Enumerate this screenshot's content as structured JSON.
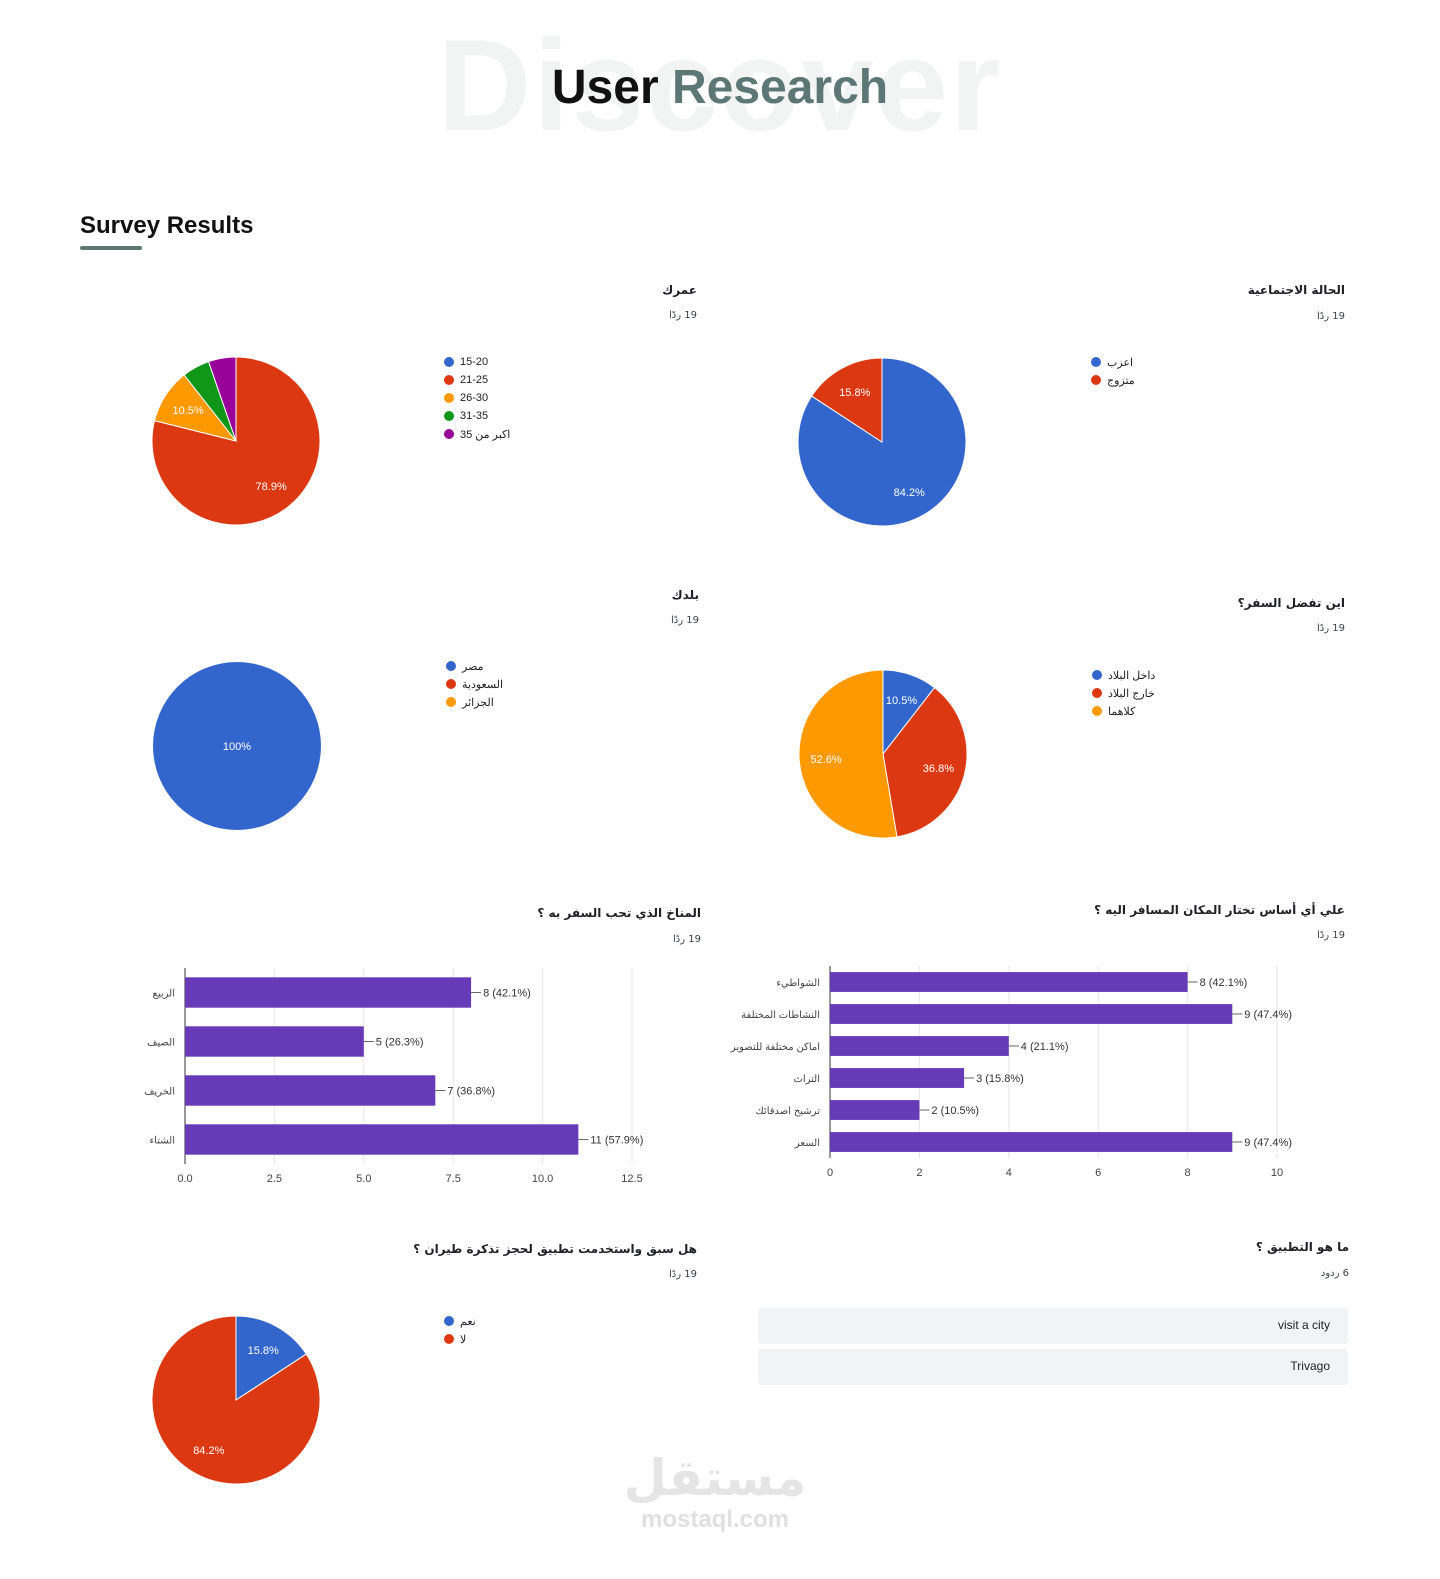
{
  "header": {
    "background_word": "Discover",
    "title_part1": "User",
    "title_part2": "Research"
  },
  "section": {
    "title": "Survey Results"
  },
  "colors": {
    "blue": "#3366cc",
    "red": "#dc3912",
    "orange": "#ff9900",
    "green": "#109618",
    "purple": "#990099",
    "bar": "#673ab7",
    "accent": "#5c7775"
  },
  "chart_data": [
    {
      "id": "age",
      "type": "pie",
      "title": "عمرك",
      "responses": "19 ردًا",
      "labels": [
        "15-20",
        "21-25",
        "26-30",
        "31-35",
        "اكبر من 35"
      ],
      "values": [
        0,
        78.9,
        10.5,
        5.3,
        5.3
      ],
      "colors": [
        "#3366cc",
        "#dc3912",
        "#ff9900",
        "#109618",
        "#990099"
      ],
      "shown_labels": {
        "1": "78.9%",
        "2": "10.5%"
      },
      "legend_position": "right"
    },
    {
      "id": "marital",
      "type": "pie",
      "title": "الحالة الاجتماعية",
      "responses": "19 ردًا",
      "labels": [
        "اعزب",
        "متزوج"
      ],
      "values": [
        84.2,
        15.8
      ],
      "colors": [
        "#3366cc",
        "#dc3912"
      ],
      "shown_labels": {
        "0": "84.2%",
        "1": "15.8%"
      },
      "legend_position": "right"
    },
    {
      "id": "country",
      "type": "pie",
      "title": "بلدك",
      "responses": "19 ردًا",
      "labels": [
        "مصر",
        "السعودية",
        "الجزائر"
      ],
      "values": [
        100,
        0,
        0
      ],
      "colors": [
        "#3366cc",
        "#dc3912",
        "#ff9900"
      ],
      "shown_labels": {
        "0": "100%"
      },
      "legend_position": "right"
    },
    {
      "id": "travel_where",
      "type": "pie",
      "title": "اين تفضل السفر؟",
      "responses": "19 ردًا",
      "labels": [
        "داخل البلاد",
        "خارج البلاد",
        "كلاهما"
      ],
      "values": [
        10.5,
        36.8,
        52.6
      ],
      "colors": [
        "#3366cc",
        "#dc3912",
        "#ff9900"
      ],
      "shown_labels": {
        "0": "10.5%",
        "1": "36.8%",
        "2": "52.6%"
      },
      "legend_position": "right"
    },
    {
      "id": "climate",
      "type": "bar",
      "orientation": "horizontal",
      "title": "المناخ الذي تحب السفر به ؟",
      "responses": "19 ردًا",
      "categories": [
        "الربيع",
        "الصيف",
        "الخريف",
        "الشتاء"
      ],
      "values": [
        8,
        5,
        7,
        11
      ],
      "value_labels": [
        "8 (42.1%)",
        "5 (26.3%)",
        "7 (36.8%)",
        "11 (57.9%)"
      ],
      "xlim": [
        0,
        12.5
      ],
      "ticks": [
        "0.0",
        "2.5",
        "5.0",
        "7.5",
        "10.0",
        "12.5"
      ],
      "grid": true
    },
    {
      "id": "choose_basis",
      "type": "bar",
      "orientation": "horizontal",
      "title": "علي أي أساس تختار المكان المسافر اليه ؟",
      "responses": "19 ردًا",
      "categories": [
        "الشواطيء",
        "النشاطات المختلفة",
        "اماكن مختلفة للتصوير",
        "التراث",
        "ترشيح اصدقائك",
        "السعر"
      ],
      "values": [
        8,
        9,
        4,
        3,
        2,
        9
      ],
      "value_labels": [
        "8 (42.1%)",
        "9 (47.4%)",
        "4 (21.1%)",
        "3 (15.8%)",
        "2 (10.5%)",
        "9 (47.4%)"
      ],
      "xlim": [
        0,
        10
      ],
      "ticks": [
        "0",
        "2",
        "4",
        "6",
        "8",
        "10"
      ],
      "grid": true
    },
    {
      "id": "used_app",
      "type": "pie",
      "title": "هل سبق واستخدمت تطبيق لحجز تذكرة طيران ؟",
      "responses": "19 ردًا",
      "labels": [
        "نعم",
        "لا"
      ],
      "values": [
        15.8,
        84.2
      ],
      "colors": [
        "#3366cc",
        "#dc3912"
      ],
      "shown_labels": {
        "0": "15.8%",
        "1": "84.2%"
      },
      "legend_position": "right"
    }
  ],
  "text_question": {
    "title": "ما هو التطبيق ؟",
    "responses": "6 ردود",
    "answers": [
      "visit a city",
      "Trivago"
    ]
  },
  "watermark": {
    "arabic": "مستقل",
    "latin": "mostaql.com"
  }
}
